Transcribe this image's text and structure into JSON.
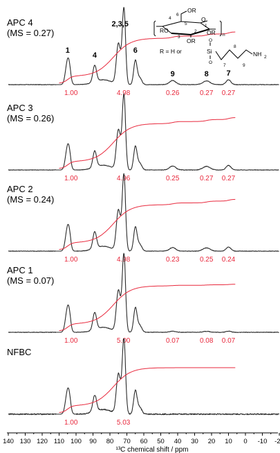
{
  "chart_data": {
    "type": "line",
    "title": "",
    "xlabel": "¹³C chemical shift / ppm",
    "ylabel": "",
    "x_axis": {
      "range": [
        140,
        -20
      ],
      "reversed": true,
      "ticks": [
        140,
        130,
        120,
        110,
        100,
        90,
        80,
        70,
        60,
        50,
        40,
        30,
        20,
        10,
        0,
        -10,
        -20
      ]
    },
    "peak_labels": [
      {
        "label": "1",
        "ppm": 105
      },
      {
        "label": "4",
        "ppm": 89
      },
      {
        "label": "2,3,5",
        "ppm": 74
      },
      {
        "label": "6",
        "ppm": 65
      },
      {
        "label": "9",
        "ppm": 43
      },
      {
        "label": "8",
        "ppm": 23
      },
      {
        "label": "7",
        "ppm": 10
      }
    ],
    "panels": [
      {
        "name": "APC 4",
        "ms": "(MS = 0.27)",
        "integrals": [
          {
            "ppm": 103,
            "value": "1.00"
          },
          {
            "ppm": 72,
            "value": "4.98"
          },
          {
            "ppm": 43,
            "value": "0.26"
          },
          {
            "ppm": 23,
            "value": "0.27"
          },
          {
            "ppm": 10,
            "value": "0.27"
          }
        ]
      },
      {
        "name": "APC 3",
        "ms": "(MS = 0.26)",
        "integrals": [
          {
            "ppm": 103,
            "value": "1.00"
          },
          {
            "ppm": 72,
            "value": "4.96"
          },
          {
            "ppm": 43,
            "value": "0.25"
          },
          {
            "ppm": 23,
            "value": "0.27"
          },
          {
            "ppm": 10,
            "value": "0.27"
          }
        ]
      },
      {
        "name": "APC 2",
        "ms": "(MS = 0.24)",
        "integrals": [
          {
            "ppm": 103,
            "value": "1.00"
          },
          {
            "ppm": 72,
            "value": "4.98"
          },
          {
            "ppm": 43,
            "value": "0.23"
          },
          {
            "ppm": 23,
            "value": "0.25"
          },
          {
            "ppm": 10,
            "value": "0.24"
          }
        ]
      },
      {
        "name": "APC 1",
        "ms": "(MS = 0.07)",
        "integrals": [
          {
            "ppm": 103,
            "value": "1.00"
          },
          {
            "ppm": 72,
            "value": "5.00"
          },
          {
            "ppm": 43,
            "value": "0.07"
          },
          {
            "ppm": 23,
            "value": "0.08"
          },
          {
            "ppm": 10,
            "value": "0.07"
          }
        ]
      },
      {
        "name": "NFBC",
        "ms": "",
        "integrals": [
          {
            "ppm": 103,
            "value": "1.00"
          },
          {
            "ppm": 72,
            "value": "5.03"
          }
        ]
      }
    ],
    "grid": false,
    "colors": {
      "spectrum": "#2a2a2a",
      "integral": "#e8283c"
    }
  },
  "structure": {
    "atom_labels": [
      "OR",
      "RO",
      "OR",
      "OR",
      "4",
      "6",
      "5",
      "3",
      "2",
      "1",
      "n",
      "O"
    ],
    "r_definition": "R = H  or",
    "si_label": "Si",
    "nh2_label": "NH",
    "nh2_sub": "2",
    "chain_numbers": [
      "7",
      "8",
      "9"
    ]
  }
}
